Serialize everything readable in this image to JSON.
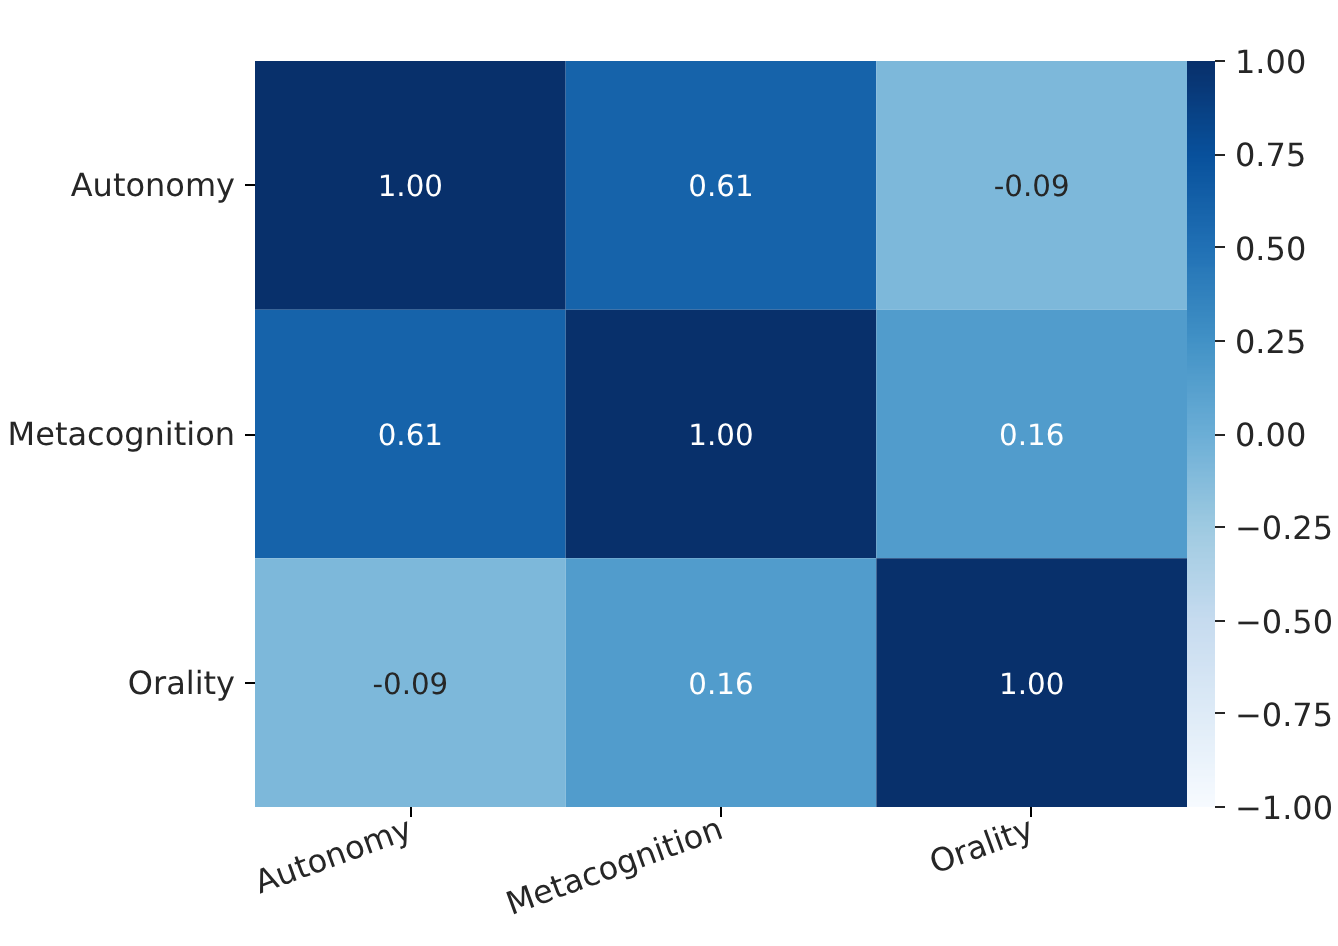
{
  "chart_data": {
    "type": "heatmap",
    "categories": [
      "Autonomy",
      "Metacognition",
      "Orality"
    ],
    "y_categories": [
      "Autonomy",
      "Metacognition",
      "Orality"
    ],
    "cells": [
      [
        1.0,
        0.61,
        -0.09
      ],
      [
        0.61,
        1.0,
        0.16
      ],
      [
        -0.09,
        0.16,
        1.0
      ]
    ],
    "cell_labels": [
      [
        "1.00",
        "0.61",
        "-0.09"
      ],
      [
        "0.61",
        "1.00",
        "0.16"
      ],
      [
        "-0.09",
        "0.16",
        "1.00"
      ]
    ],
    "clim": [
      -1,
      1
    ],
    "cticks": [
      {
        "value": -1,
        "label": "−1.00"
      },
      {
        "value": -0.75,
        "label": "−0.75"
      },
      {
        "value": -0.5,
        "label": "−0.50"
      },
      {
        "value": -0.25,
        "label": "−0.25"
      },
      {
        "value": 0,
        "label": "0.00"
      },
      {
        "value": 0.25,
        "label": "0.25"
      },
      {
        "value": 0.5,
        "label": "0.50"
      },
      {
        "value": 0.75,
        "label": "0.75"
      },
      {
        "value": 1,
        "label": "1.00"
      }
    ]
  }
}
